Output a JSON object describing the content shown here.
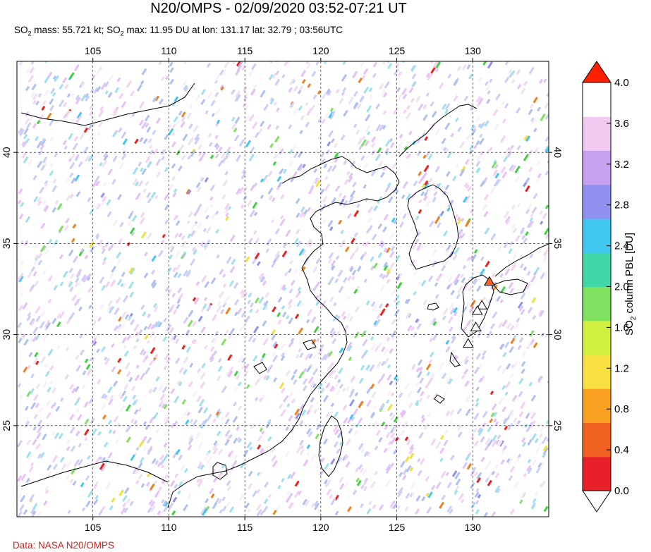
{
  "title": "N20/OMPS - 02/09/2020 03:52-07:21 UT",
  "subtitle": {
    "p1": "SO",
    "sub1": "2",
    "p2": " mass: 55.721 kt; SO",
    "sub2": "2",
    "p3": " max: 11.95 DU at lon: 131.17 lat: 32.79 ; 03:56UTC"
  },
  "credit": "Data: NASA N20/OMPS",
  "map": {
    "lon_range": [
      100,
      135
    ],
    "lat_range": [
      20,
      45
    ],
    "lon_ticks": [
      "105",
      "110",
      "115",
      "120",
      "125",
      "130"
    ],
    "lat_ticks": [
      "25",
      "30",
      "35",
      "40"
    ],
    "grid_lines": "dashed"
  },
  "volcano_markers": [
    {
      "lon": 131.1,
      "lat": 32.9,
      "color": "#ff6020"
    },
    {
      "lon": 130.6,
      "lat": 31.6,
      "color": "#ffffff"
    },
    {
      "lon": 130.3,
      "lat": 31.3,
      "color": "#ffffff"
    },
    {
      "lon": 130.2,
      "lat": 30.4,
      "color": "#ffffff"
    },
    {
      "lon": 129.7,
      "lat": 29.5,
      "color": "#ffffff"
    }
  ],
  "colorbar": {
    "label_p1": "SO",
    "label_sub": "2",
    "label_p2": " column PBL [DU]",
    "ticks": [
      "4.0",
      "3.6",
      "3.2",
      "2.8",
      "2.4",
      "2.0",
      "1.6",
      "1.2",
      "0.8",
      "0.4",
      "0.0"
    ],
    "colors": [
      "#e8202a",
      "#f06020",
      "#f8a020",
      "#f8e040",
      "#d0f040",
      "#80e060",
      "#40d8a8",
      "#40c8f0",
      "#9090f0",
      "#c8a0f0",
      "#f0c8f0",
      "#ffffff"
    ],
    "over_color": "#ff2000",
    "under_color": "#ffffff"
  }
}
